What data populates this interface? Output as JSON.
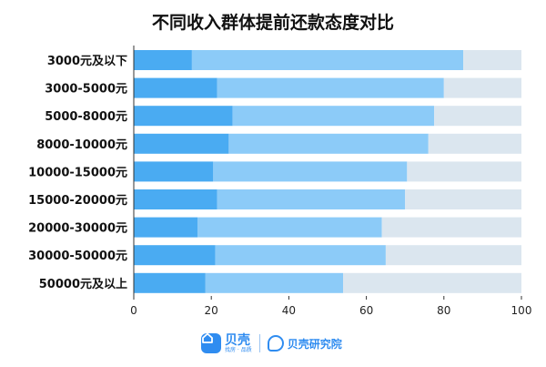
{
  "chart_data": {
    "type": "bar",
    "orientation": "horizontal",
    "stacked": true,
    "title": "不同收入群体提前还款态度对比",
    "categories": [
      "3000元及以下",
      "3000-5000元",
      "5000-8000元",
      "8000-10000元",
      "10000-15000元",
      "15000-20000元",
      "20000-30000元",
      "30000-50000元",
      "50000元及以上"
    ],
    "series": [
      {
        "values": [
          15,
          21.5,
          25.5,
          24.5,
          20.5,
          21.5,
          16.5,
          21,
          18.5
        ],
        "color": "#4aabf2"
      },
      {
        "values": [
          70,
          58.5,
          52,
          51.5,
          50,
          48.5,
          47.5,
          44,
          35.5
        ],
        "color": "#8ccbf8"
      },
      {
        "values": [
          15,
          20,
          22.5,
          24,
          29.5,
          30,
          36,
          35,
          46
        ],
        "color": "#dbe6ef"
      }
    ],
    "xlim": [
      0,
      100
    ],
    "xticks": [
      "0",
      "20",
      "40",
      "60",
      "80",
      "100"
    ],
    "xlabel": "",
    "ylabel": "",
    "grid": false,
    "legend": "none"
  },
  "footer": {
    "brand1": "贝壳",
    "brand1_sub": "找房 · 品质",
    "brand2": "贝壳研究院"
  }
}
